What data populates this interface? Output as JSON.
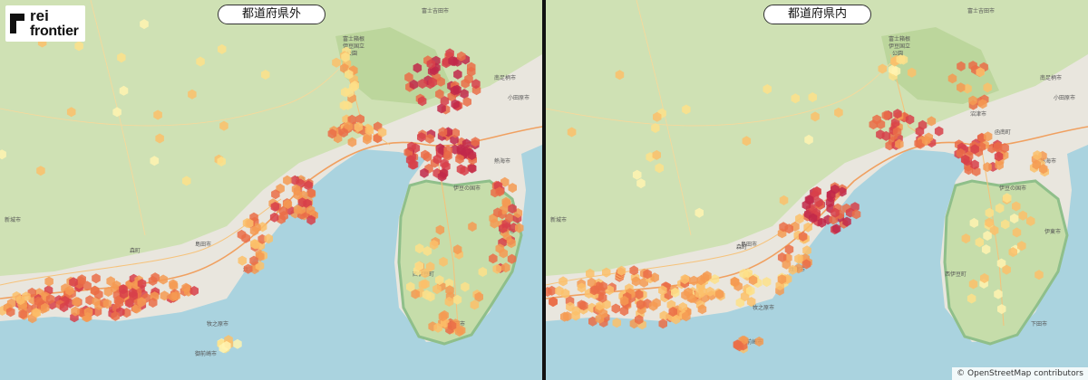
{
  "panels": {
    "left": {
      "title": "都道府県外"
    },
    "right": {
      "title": "都道府県内"
    }
  },
  "logo": {
    "line1": "rei",
    "line2": "frontier"
  },
  "attribution": "© OpenStreetMap contributors",
  "map_labels": {
    "fuji_park": [
      "富士箱根",
      "伊豆国立",
      "公園"
    ],
    "odawara": "小田原市",
    "minami_ashigara": "南足柄市",
    "fujiyoshida": "富士吉田市",
    "izunokuni": "伊豆の国市",
    "ito": "伊東市",
    "atami": "熱海市",
    "shimizu": "清水",
    "shimada": "島田市",
    "yaizu": "焼津市",
    "makinohara": "牧之原市",
    "omaezaki": "御前崎市",
    "shinshiro": "新城市",
    "shimoda": "下田市",
    "nishiizu": "西伊豆町",
    "kannami": "函南町",
    "numazu": "沼津市",
    "mori": "森町"
  },
  "colors": {
    "land": "#e9e6de",
    "green": "#c9dfae",
    "sea": "#aad3df",
    "hex_scale": [
      "#fff3b0",
      "#fde08a",
      "#fbbf6a",
      "#f59a52",
      "#ea6d48",
      "#d7404a",
      "#c1284a"
    ]
  }
}
